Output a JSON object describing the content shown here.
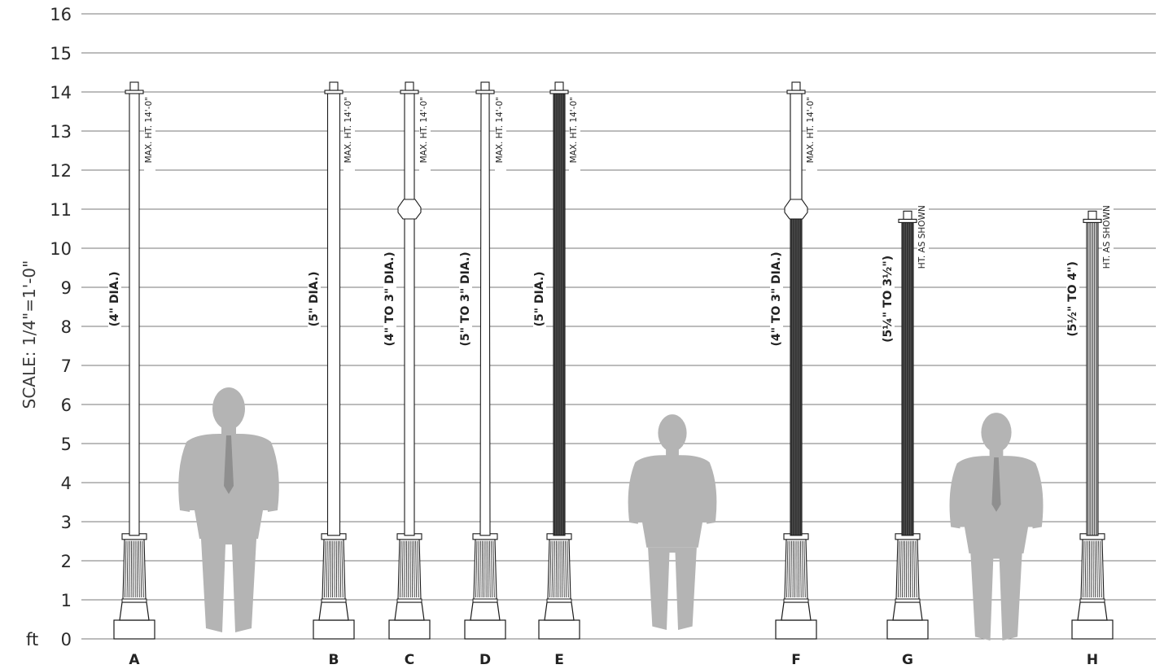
{
  "scale_label": "SCALE: 1/4\"=1'-0\"",
  "unit_label": "ft",
  "y_axis_ticks": [
    "16",
    "15",
    "14",
    "13",
    "12",
    "11",
    "10",
    "9",
    "8",
    "7",
    "6",
    "5",
    "4",
    "3",
    "2",
    "1",
    "0"
  ],
  "poles": [
    {
      "letter": "A",
      "dia_label": "(4\" DIA.)",
      "height_label": "MAX. HT. 14'-0\"",
      "height_ft": 14.0,
      "style": "smooth",
      "collar": false
    },
    {
      "letter": "B",
      "dia_label": "(5\" DIA.)",
      "height_label": "MAX. HT. 14'-0\"",
      "height_ft": 14.0,
      "style": "smooth",
      "collar": false
    },
    {
      "letter": "C",
      "dia_label": "(4\" TO 3\" DIA.)",
      "height_label": "MAX. HT. 14'-0\"",
      "height_ft": 14.0,
      "style": "smooth",
      "collar": true
    },
    {
      "letter": "D",
      "dia_label": "(5\" TO 3\" DIA.)",
      "height_label": "MAX. HT. 14'-0\"",
      "height_ft": 14.0,
      "style": "tapered",
      "collar": false
    },
    {
      "letter": "E",
      "dia_label": "(5\" DIA.)",
      "height_label": "MAX. HT. 14'-0\"",
      "height_ft": 14.0,
      "style": "fluted-dark",
      "collar": false
    },
    {
      "letter": "F",
      "dia_label": "(4\" TO 3\" DIA.)",
      "height_label": "MAX. HT. 14'-0\"",
      "height_ft": 14.0,
      "style": "fluted-dark-collar",
      "collar": true
    },
    {
      "letter": "G",
      "dia_label": "(5¼\" TO 3½\")",
      "height_label": "HT. AS SHOWN",
      "height_ft": 10.7,
      "style": "fluted-dark",
      "collar": false
    },
    {
      "letter": "H",
      "dia_label": "(5½\" TO 4\")",
      "height_label": "HT. AS SHOWN",
      "height_ft": 10.7,
      "style": "fluted-light",
      "collar": false
    }
  ],
  "figures": [
    {
      "type": "man-suit"
    },
    {
      "type": "woman"
    },
    {
      "type": "man-hands-in-pockets"
    }
  ],
  "colors": {
    "grid": "#7a7a7a",
    "text": "#222222",
    "pole_stroke": "#1a1a1a",
    "silhouette": "#b4b4b4"
  }
}
